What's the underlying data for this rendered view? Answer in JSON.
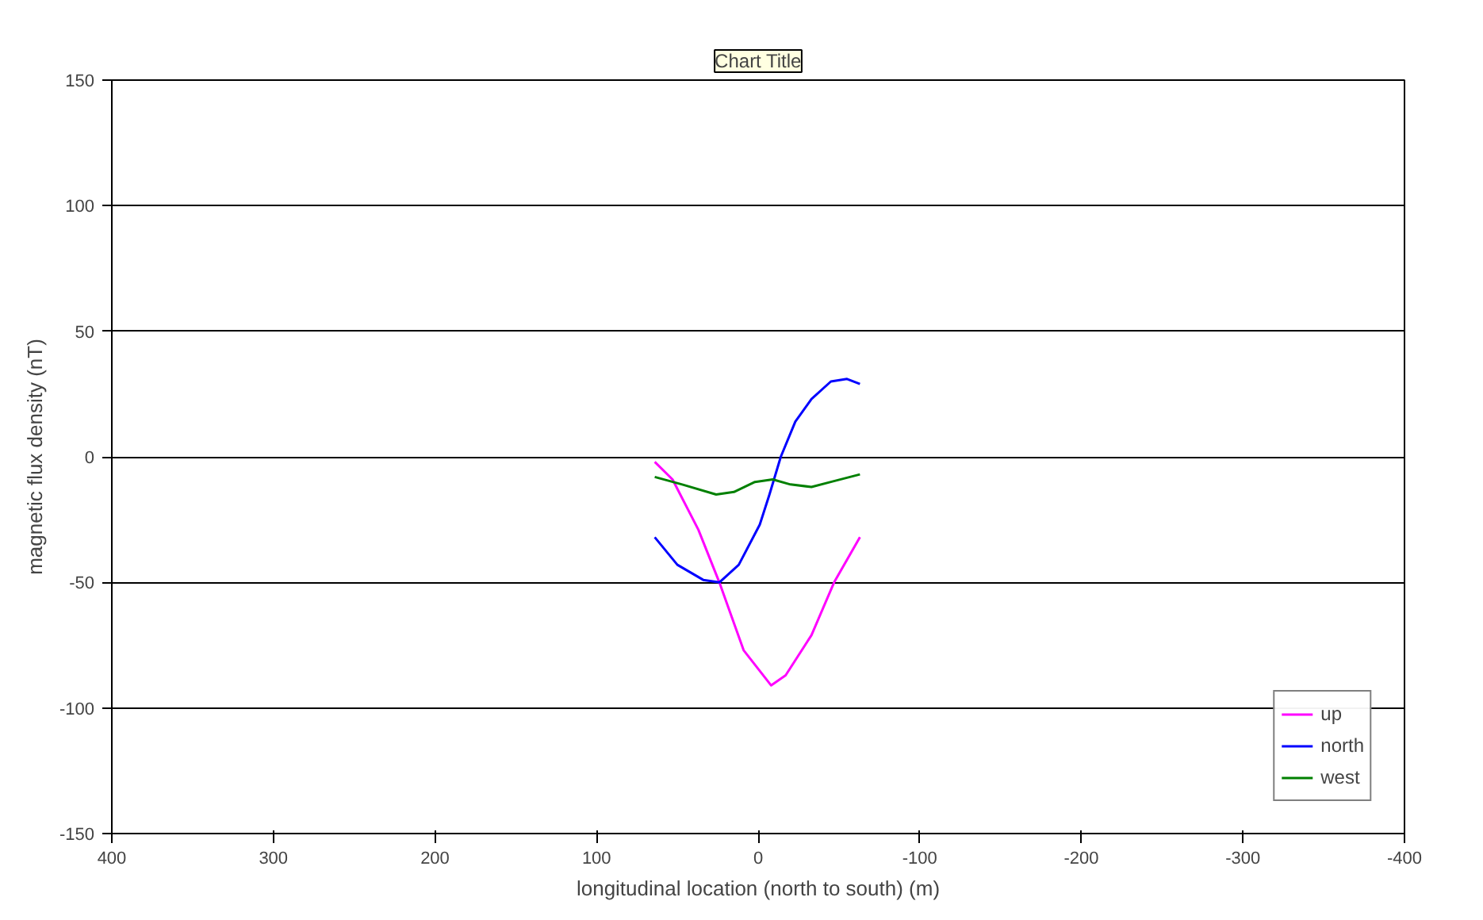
{
  "chart_data": {
    "type": "line",
    "xlabel": "longitudinal location (north to south) (m)",
    "ylabel": "magnetic flux density (nT)",
    "annotations": [
      "Chart Title"
    ],
    "xlim": [
      400,
      -400
    ],
    "xticks": [
      400,
      300,
      200,
      100,
      0,
      -100,
      -200,
      -300,
      -400
    ],
    "ylim": [
      -150,
      150
    ],
    "yticks": [
      -150,
      -100,
      -50,
      0,
      50,
      100,
      150
    ],
    "grid": "y",
    "legend": "bottom right",
    "line_style": "solid",
    "series": [
      {
        "name": "up",
        "color": "#ff00ff",
        "x": [
          64,
          53,
          37,
          24,
          9,
          -8,
          -17,
          -33,
          -47,
          -63
        ],
        "values": [
          -2,
          -9,
          -29,
          -50,
          -77,
          -91,
          -87,
          -71,
          -50,
          -32
        ]
      },
      {
        "name": "north",
        "color": "#0000ff",
        "x": [
          64,
          50,
          34,
          24,
          12,
          -1,
          -7,
          -14,
          -23,
          -33,
          -45,
          -55,
          -63
        ],
        "values": [
          -32,
          -43,
          -49,
          -50,
          -43,
          -27,
          -15,
          0,
          14,
          23,
          30,
          31,
          29
        ]
      },
      {
        "name": "west",
        "color": "#008000",
        "x": [
          64,
          47,
          26,
          15,
          2,
          -9,
          -20,
          -33,
          -45,
          -63
        ],
        "values": [
          -8,
          -11,
          -15,
          -14,
          -10,
          -9,
          -11,
          -12,
          -10,
          -7
        ]
      }
    ]
  }
}
